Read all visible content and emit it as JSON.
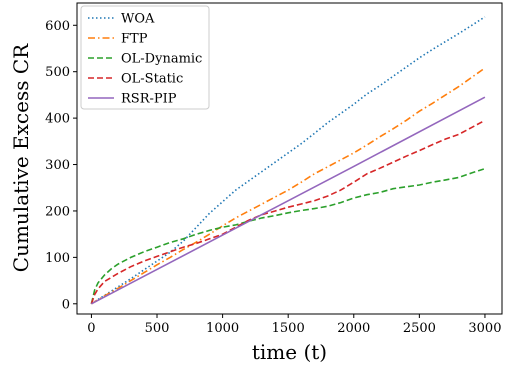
{
  "chart_data": {
    "type": "line",
    "xlabel": "time (t)",
    "ylabel": "Cumulative Excess CR",
    "xlim": [
      -110,
      3130
    ],
    "ylim": [
      -22,
      648
    ],
    "xticks": [
      0,
      500,
      1000,
      1500,
      2000,
      2500,
      3000
    ],
    "yticks": [
      0,
      100,
      200,
      300,
      400,
      500,
      600
    ],
    "grid": false,
    "legend_placement": "top-left",
    "series": [
      {
        "name": "WOA",
        "color": "#1f77b4",
        "dash": "dotted",
        "x": [
          0,
          100,
          200,
          300,
          400,
          500,
          600,
          700,
          800,
          900,
          1000,
          1100,
          1200,
          1300,
          1400,
          1500,
          1600,
          1700,
          1800,
          1900,
          2000,
          2100,
          2200,
          2300,
          2400,
          2500,
          2600,
          2700,
          2800,
          2900,
          3000
        ],
        "values": [
          0,
          18,
          36,
          54,
          73,
          92,
          111,
          135,
          165,
          195,
          220,
          245,
          265,
          285,
          305,
          325,
          345,
          367,
          390,
          410,
          430,
          452,
          470,
          490,
          510,
          530,
          548,
          565,
          582,
          600,
          618
        ]
      },
      {
        "name": "FTP",
        "color": "#ff7f0e",
        "dash": "dashdot",
        "x": [
          0,
          100,
          200,
          300,
          400,
          500,
          600,
          700,
          800,
          900,
          1000,
          1100,
          1200,
          1300,
          1400,
          1500,
          1600,
          1700,
          1800,
          1900,
          2000,
          2100,
          2200,
          2300,
          2400,
          2500,
          2600,
          2700,
          2800,
          2900,
          3000
        ],
        "values": [
          0,
          17,
          33,
          50,
          67,
          84,
          100,
          117,
          133,
          150,
          168,
          185,
          200,
          215,
          230,
          245,
          262,
          280,
          295,
          310,
          325,
          342,
          360,
          377,
          395,
          415,
          432,
          450,
          468,
          488,
          508
        ]
      },
      {
        "name": "OL-Dynamic",
        "color": "#2ca02c",
        "dash": "dashed",
        "x": [
          0,
          25,
          50,
          100,
          150,
          200,
          300,
          400,
          500,
          600,
          700,
          800,
          900,
          1000,
          1100,
          1200,
          1300,
          1400,
          1500,
          1600,
          1700,
          1800,
          1900,
          2000,
          2100,
          2200,
          2300,
          2400,
          2500,
          2600,
          2700,
          2800,
          2900,
          3000
        ],
        "values": [
          0,
          30,
          45,
          62,
          75,
          85,
          100,
          112,
          122,
          132,
          140,
          150,
          158,
          165,
          170,
          178,
          185,
          190,
          196,
          201,
          205,
          210,
          218,
          228,
          235,
          240,
          248,
          252,
          256,
          262,
          267,
          272,
          282,
          291
        ]
      },
      {
        "name": "OL-Static",
        "color": "#d62728",
        "dash": "dashed",
        "x": [
          0,
          25,
          50,
          100,
          200,
          300,
          400,
          500,
          600,
          700,
          800,
          900,
          1000,
          1100,
          1200,
          1300,
          1400,
          1500,
          1600,
          1700,
          1800,
          1900,
          2000,
          2100,
          2200,
          2300,
          2400,
          2500,
          2600,
          2700,
          2800,
          2900,
          3000
        ],
        "values": [
          0,
          20,
          32,
          48,
          65,
          80,
          92,
          102,
          112,
          122,
          130,
          140,
          150,
          165,
          180,
          192,
          200,
          208,
          215,
          222,
          232,
          245,
          262,
          280,
          292,
          305,
          318,
          330,
          343,
          355,
          365,
          380,
          395
        ]
      },
      {
        "name": "RSR-PIP",
        "color": "#9467bd",
        "dash": "solid",
        "x": [
          0,
          1000,
          2000,
          3000
        ],
        "values": [
          0,
          148,
          296,
          445
        ]
      }
    ]
  }
}
